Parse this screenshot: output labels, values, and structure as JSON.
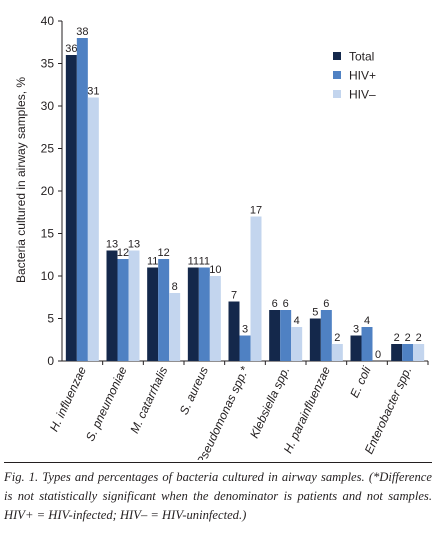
{
  "chart_data": {
    "type": "bar",
    "title": "",
    "xlabel": "",
    "ylabel": "Bacteria cultured in airway samples, %",
    "ylim": [
      0,
      40
    ],
    "yticks": [
      0,
      5,
      10,
      15,
      20,
      25,
      30,
      35,
      40
    ],
    "grid": false,
    "legend_position": "top-right",
    "categories": [
      "H. influenzae",
      "S. pneumoniae",
      "M. catarrhalis",
      "S. aureus",
      "Pseudomonas spp.*",
      "Klebsiella spp.",
      "H. parainfluenzae",
      "E. coli",
      "Enterobacter spp."
    ],
    "series": [
      {
        "name": "Total",
        "color": "#14284b",
        "values": [
          36,
          13,
          11,
          11,
          7,
          6,
          5,
          3,
          2
        ]
      },
      {
        "name": "HIV+",
        "color": "#4f81c3",
        "values": [
          38,
          12,
          12,
          11,
          3,
          6,
          6,
          4,
          2
        ]
      },
      {
        "name": "HIV–",
        "color": "#c3d5ee",
        "values": [
          31,
          13,
          8,
          10,
          17,
          4,
          2,
          0,
          2
        ]
      }
    ]
  },
  "caption": {
    "text": "Fig. 1. Types and percentages of bacteria cultured in airway samples. (*Difference is not statistically significant when the denominator is patients and not samples. HIV+ = HIV-infected; HIV– = HIV-uninfected.)"
  }
}
